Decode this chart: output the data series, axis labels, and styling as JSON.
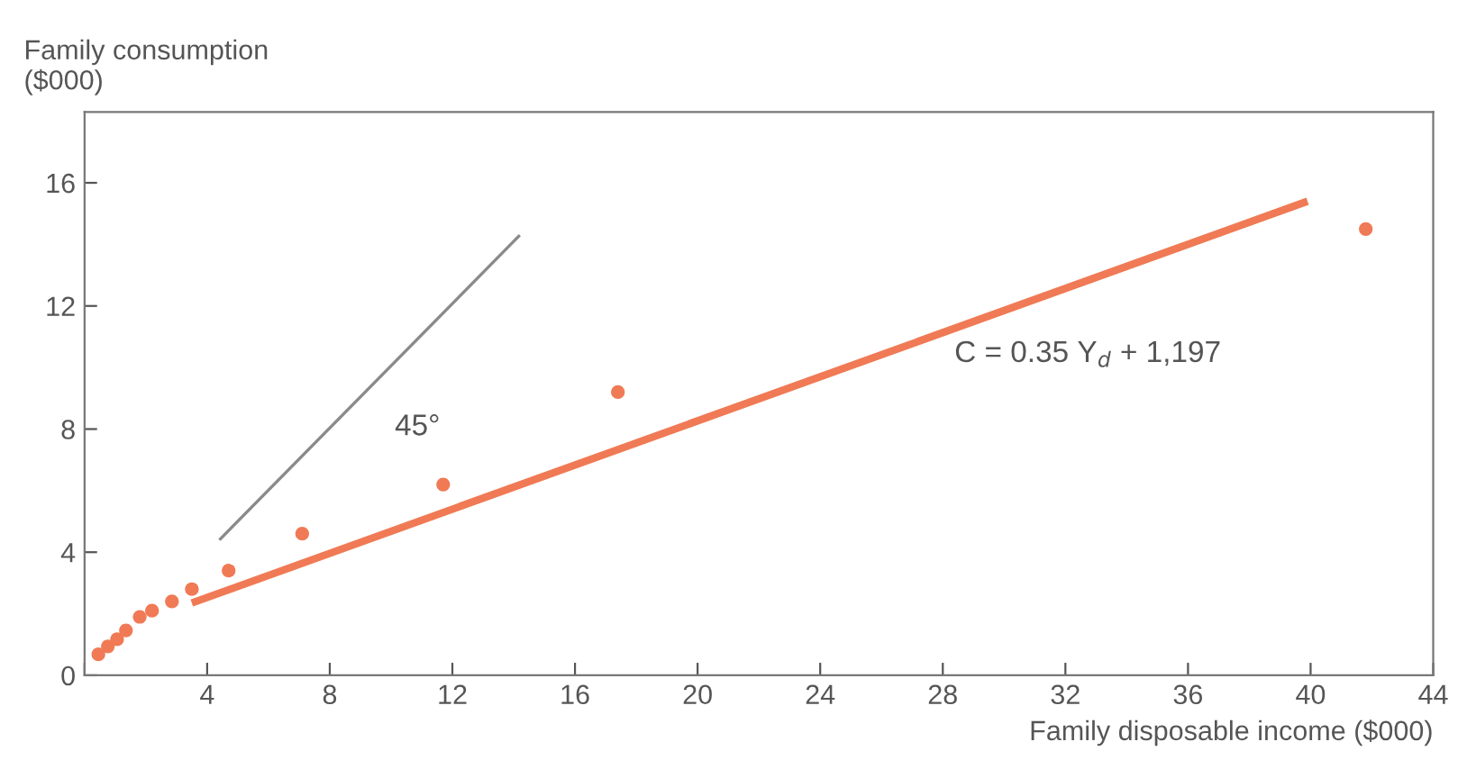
{
  "chart_data": {
    "type": "scatter",
    "xlabel": "Family disposable income ($000)",
    "ylabel": "Family consumption\n($000)",
    "xlim": [
      0,
      44
    ],
    "ylim": [
      0,
      18.3
    ],
    "xticks": [
      {
        "value": 0,
        "label": null
      },
      4,
      8,
      12,
      16,
      20,
      24,
      28,
      32,
      36,
      40,
      44
    ],
    "yticks": [
      0,
      4,
      8,
      12,
      16
    ],
    "grid": false,
    "legend": false,
    "series": [
      {
        "marker": "circle",
        "color": "#f07a55",
        "x": [
          0.45,
          0.76,
          1.06,
          1.35,
          1.8,
          2.2,
          2.85,
          3.5,
          4.7,
          7.1,
          11.7,
          17.4,
          41.8
        ],
        "values": [
          0.68,
          0.94,
          1.17,
          1.46,
          1.9,
          2.1,
          2.4,
          2.8,
          3.4,
          4.6,
          6.2,
          9.2,
          14.5
        ]
      },
      {
        "type": "line",
        "color": "#f07a55",
        "x": [
          3.5,
          39.9
        ],
        "values": [
          2.35,
          15.4
        ]
      },
      {
        "type": "line",
        "color": "#8a8a8a",
        "x": [
          4.4,
          14.2
        ],
        "values": [
          4.4,
          14.3
        ]
      }
    ],
    "annotations": [
      "45°",
      "C = 0.35 Y$_{d}$ + 1,197"
    ]
  }
}
